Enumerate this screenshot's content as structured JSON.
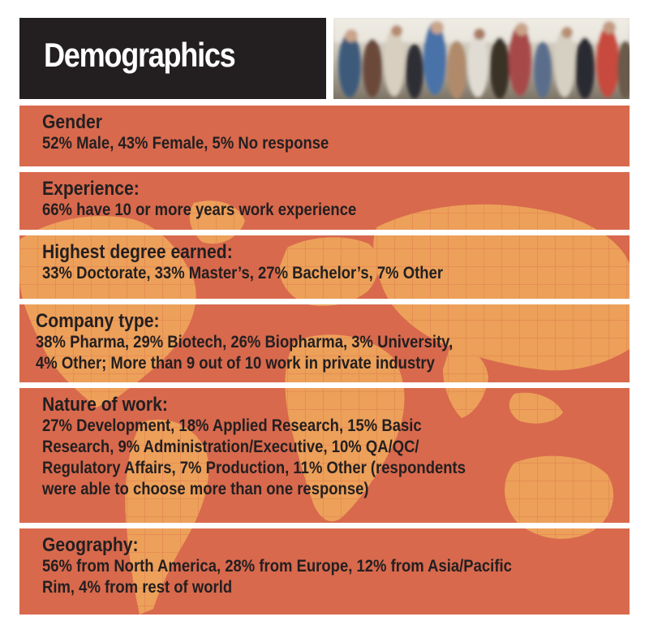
{
  "header": {
    "title": "Demographics"
  },
  "colors": {
    "header_background": "#231f20",
    "panel_background": "#d8694d",
    "map_land": "#eea35a",
    "text": "#231f20"
  },
  "sections": [
    {
      "label": "Gender",
      "value": "52% Male, 43% Female, 5% No response"
    },
    {
      "label": "Experience:",
      "value": "66% have 10 or more years work experience"
    },
    {
      "label": "Highest degree earned:",
      "value": "33% Doctorate, 33% Master’s, 27% Bachelor’s, 7% Other"
    },
    {
      "label": "Company type:",
      "value": "38% Pharma, 29% Biotech, 26% Biopharma, 3% University,\n4% Other; More than 9 out of 10 work in private industry"
    },
    {
      "label": "Nature of work:",
      "value": "27% Development, 18% Applied Research, 15% Basic\nResearch, 9% Administration/Executive, 10% QA/QC/\nRegulatory Affairs, 7% Production, 11% Other (respondents\nwere able to choose more than one response)"
    },
    {
      "label": "Geography:",
      "value": "56% from North America, 28% from Europe, 12% from Asia/Pacific\nRim, 4% from rest of world"
    }
  ]
}
